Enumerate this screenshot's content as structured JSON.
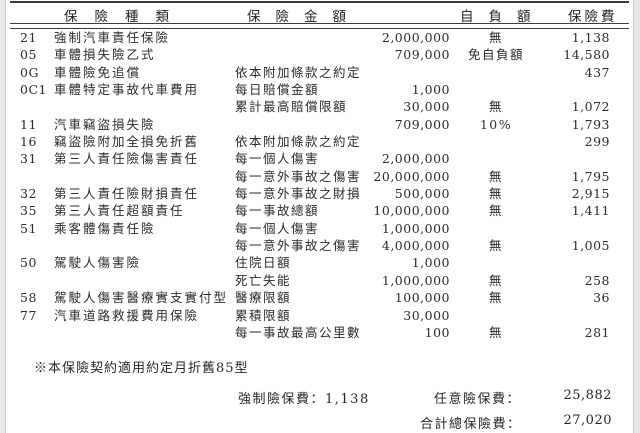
{
  "header": {
    "col_type": "保險種類",
    "col_amount": "保險金額",
    "col_deductible": "自負額",
    "col_premium": "保險費"
  },
  "table": {
    "rows": [
      {
        "code": "21",
        "name": "強制汽車責任保險",
        "desc": "",
        "amount": "2,000,000",
        "deductible": "無",
        "premium": "1,138"
      },
      {
        "code": "05",
        "name": "車體損失險乙式",
        "desc": "",
        "amount": "709,000",
        "deductible": "免自負額",
        "premium": "14,580"
      },
      {
        "code": "0G",
        "name": "車體險免追償",
        "desc": "依本附加條款之約定",
        "amount": "",
        "deductible": "",
        "premium": "437"
      },
      {
        "code": "0C1",
        "name": "車體特定事故代車費用",
        "desc": "每日賠償金額",
        "amount": "1,000",
        "deductible": "",
        "premium": ""
      },
      {
        "code": "",
        "name": "",
        "desc": "累計最高賠償限額",
        "amount": "30,000",
        "deductible": "無",
        "premium": "1,072"
      },
      {
        "code": "11",
        "name": "汽車竊盜損失險",
        "desc": "",
        "amount": "709,000",
        "deductible": "10%",
        "premium": "1,793"
      },
      {
        "code": "16",
        "name": "竊盜險附加全損免折舊",
        "desc": "依本附加條款之約定",
        "amount": "",
        "deductible": "",
        "premium": "299"
      },
      {
        "code": "31",
        "name": "第三人責任險傷害責任",
        "desc": "每一個人傷害",
        "amount": "2,000,000",
        "deductible": "",
        "premium": ""
      },
      {
        "code": "",
        "name": "",
        "desc": "每一意外事故之傷害",
        "amount": "20,000,000",
        "deductible": "無",
        "premium": "1,795"
      },
      {
        "code": "32",
        "name": "第三人責任險財損責任",
        "desc": "每一意外事故之財損",
        "amount": "500,000",
        "deductible": "無",
        "premium": "2,915"
      },
      {
        "code": "35",
        "name": "第三人責任超額責任",
        "desc": "每一事故總額",
        "amount": "10,000,000",
        "deductible": "無",
        "premium": "1,411"
      },
      {
        "code": "51",
        "name": "乘客體傷責任險",
        "desc": "每一個人傷害",
        "amount": "1,000,000",
        "deductible": "",
        "premium": ""
      },
      {
        "code": "",
        "name": "",
        "desc": "每一意外事故之傷害",
        "amount": "4,000,000",
        "deductible": "無",
        "premium": "1,005"
      },
      {
        "code": "50",
        "name": "駕駛人傷害險",
        "desc": "住院日額",
        "amount": "1,000",
        "deductible": "",
        "premium": ""
      },
      {
        "code": "",
        "name": "",
        "desc": "死亡失能",
        "amount": "1,000,000",
        "deductible": "無",
        "premium": "258"
      },
      {
        "code": "58",
        "name": "駕駛人傷害醫療實支實付型",
        "desc": "醫療限額",
        "amount": "100,000",
        "deductible": "無",
        "premium": "36"
      },
      {
        "code": "77",
        "name": "汽車道路救援費用保險",
        "desc": "累積限額",
        "amount": "30,000",
        "deductible": "",
        "premium": ""
      },
      {
        "code": "",
        "name": "",
        "desc": "每一事故最高公里數",
        "amount": "100",
        "deductible": "無",
        "premium": "281"
      }
    ]
  },
  "note": "※本保險契約適用約定月折舊85型",
  "totals": {
    "compulsory": "強制險保費：1,138",
    "voluntary_label": "任意險保費：",
    "voluntary_value": "25,882",
    "grand_label": "合計總保險費：",
    "grand_value": "27,020"
  },
  "colors": {
    "text": "#2b2b2b",
    "rule": "#3c3c3c",
    "page_edge": "#e7e7e7"
  }
}
